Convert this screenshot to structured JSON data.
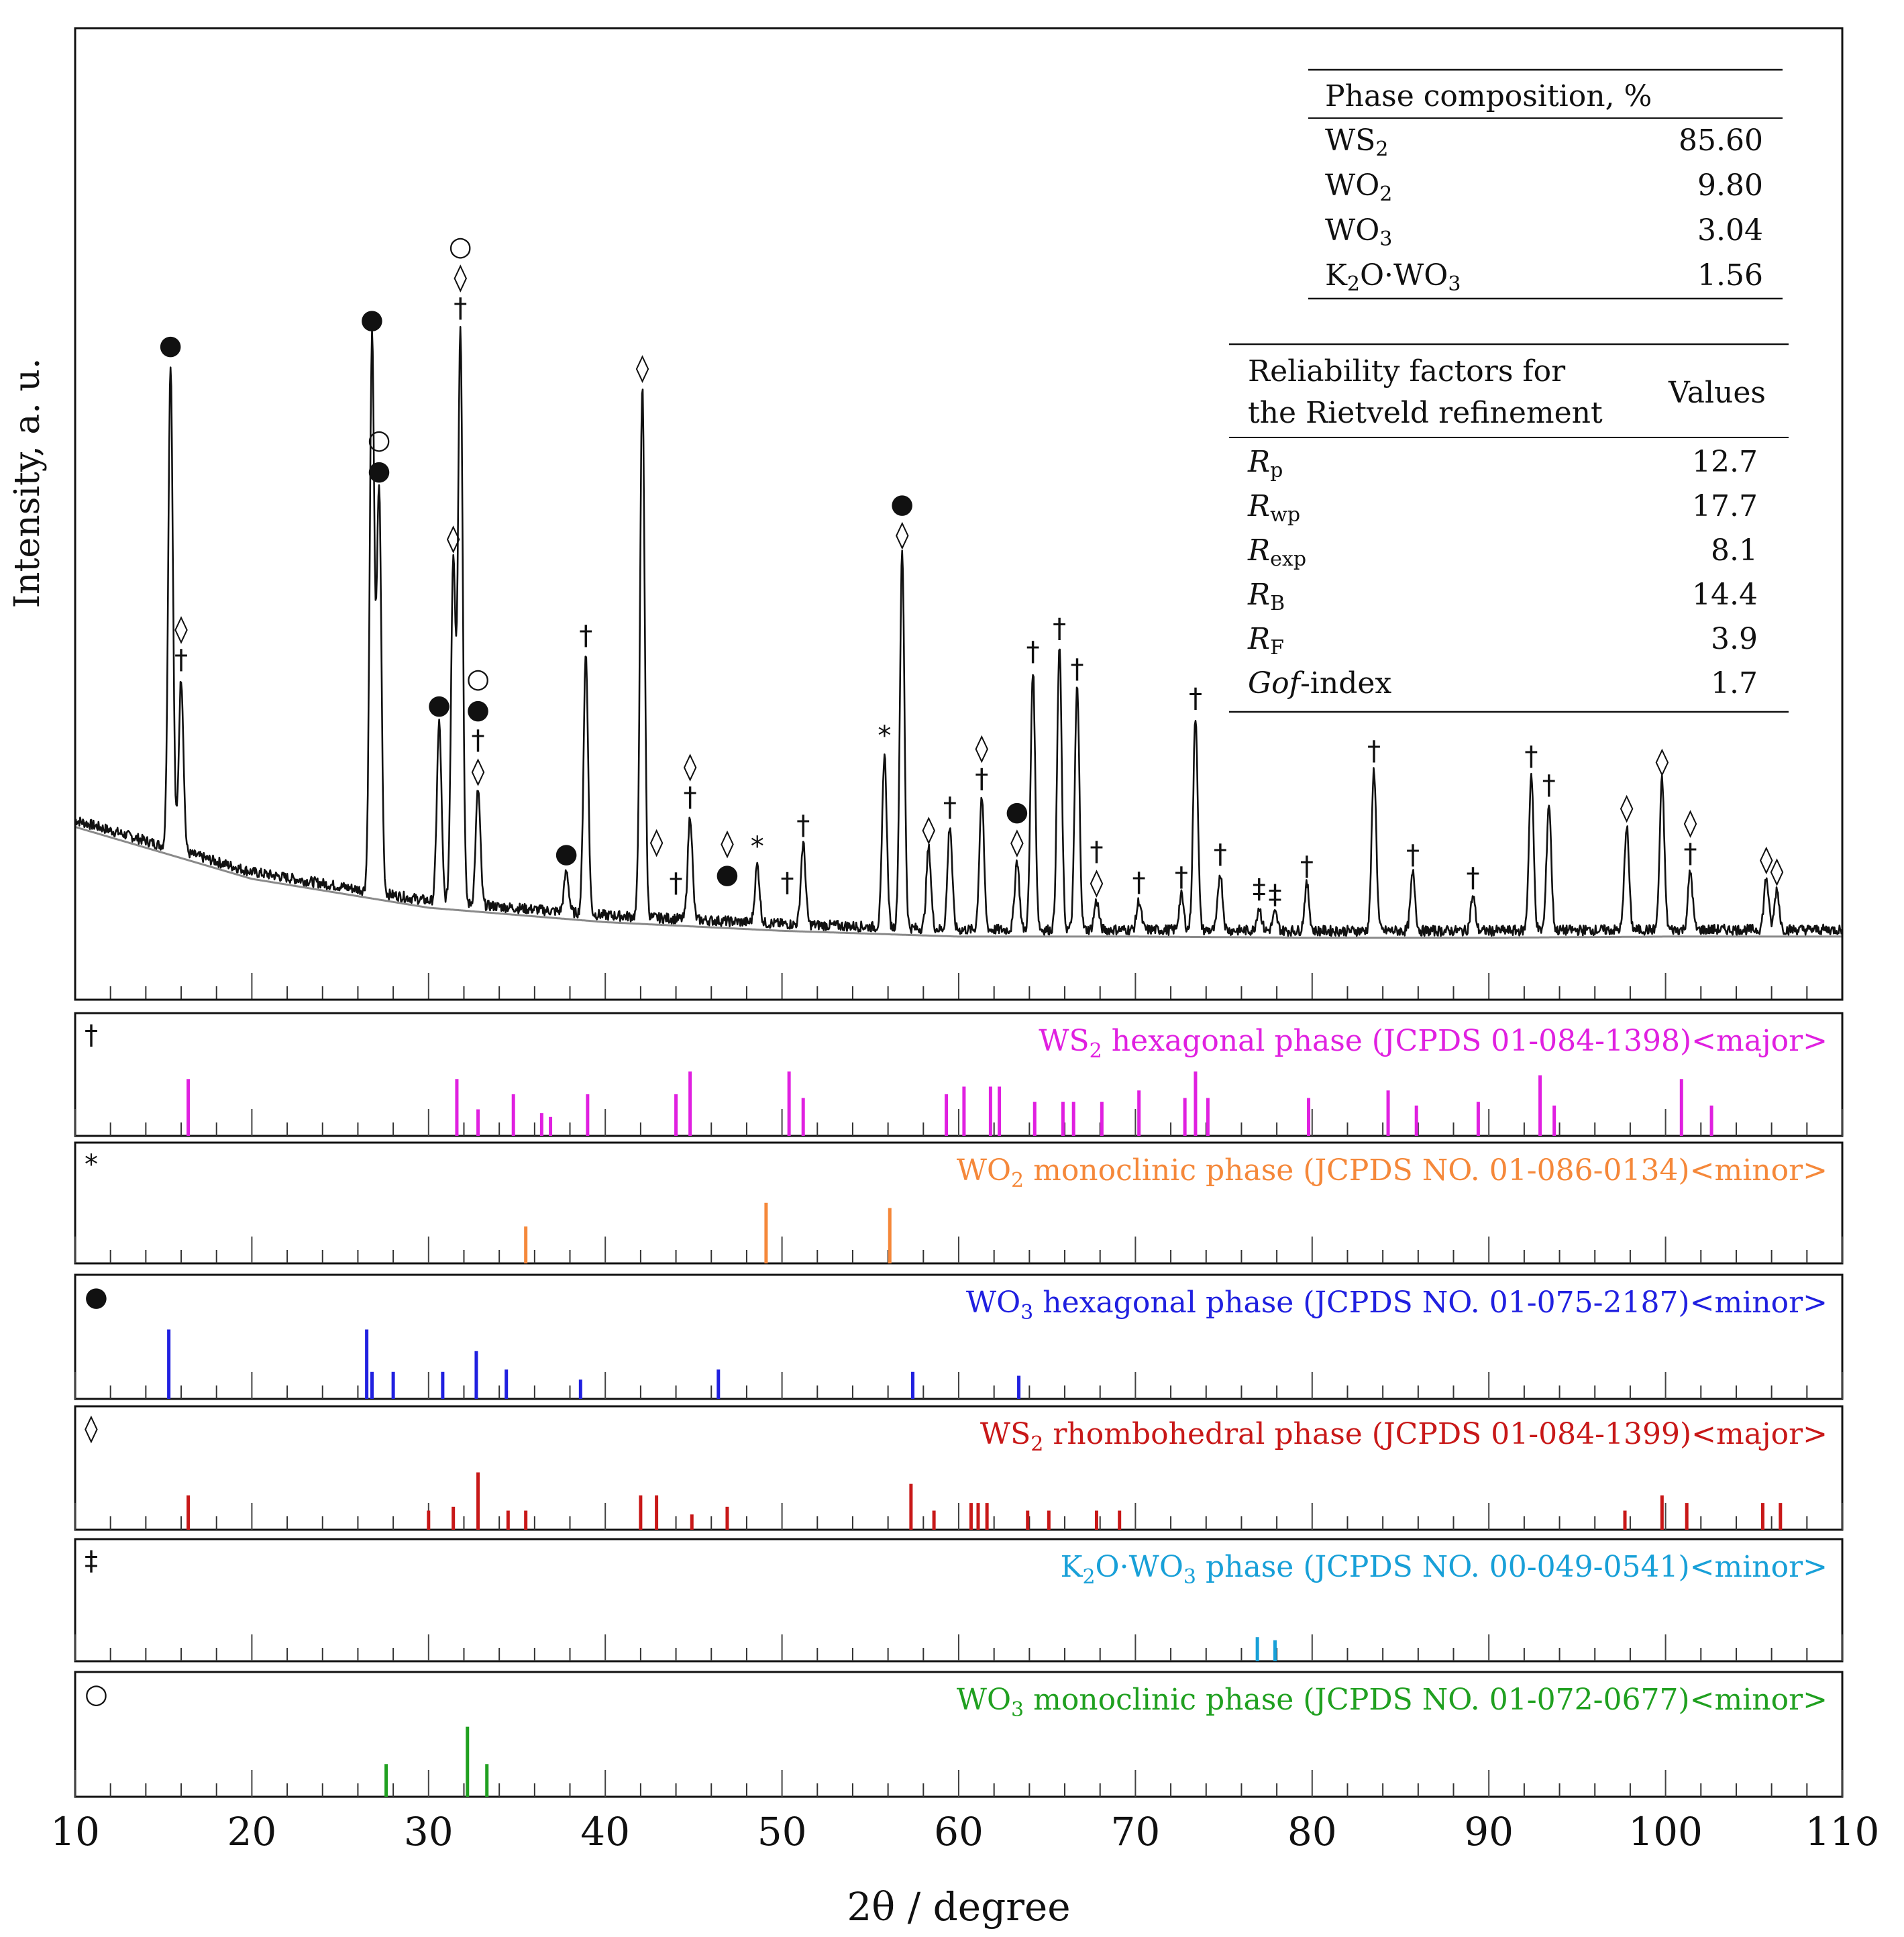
{
  "chart_data": {
    "type": "line",
    "xlabel": "2θ / degree",
    "ylabel": "Intensity, a. u.",
    "xlim": [
      10,
      110
    ],
    "x_ticks": [
      "10",
      "20",
      "30",
      "40",
      "50",
      "60",
      "70",
      "80",
      "90",
      "100",
      "110"
    ],
    "pattern": {
      "background": [
        [
          10,
          0.23
        ],
        [
          20,
          0.14
        ],
        [
          30,
          0.09
        ],
        [
          40,
          0.065
        ],
        [
          50,
          0.05
        ],
        [
          60,
          0.04
        ],
        [
          70,
          0.04
        ],
        [
          80,
          0.038
        ],
        [
          90,
          0.038
        ],
        [
          100,
          0.04
        ],
        [
          110,
          0.04
        ]
      ],
      "peaks": [
        [
          15.4,
          0.84
        ],
        [
          16.0,
          0.3
        ],
        [
          26.8,
          0.96
        ],
        [
          27.2,
          0.7
        ],
        [
          30.6,
          0.31
        ],
        [
          31.4,
          0.6
        ],
        [
          31.8,
          1.0
        ],
        [
          32.8,
          0.2
        ],
        [
          37.8,
          0.07
        ],
        [
          38.9,
          0.45
        ],
        [
          42.1,
          0.92
        ],
        [
          44.8,
          0.18
        ],
        [
          48.6,
          0.1
        ],
        [
          51.2,
          0.14
        ],
        [
          55.8,
          0.3
        ],
        [
          56.8,
          0.65
        ],
        [
          58.3,
          0.14
        ],
        [
          59.5,
          0.18
        ],
        [
          61.3,
          0.23
        ],
        [
          63.3,
          0.12
        ],
        [
          64.2,
          0.45
        ],
        [
          65.7,
          0.49
        ],
        [
          66.7,
          0.42
        ],
        [
          67.8,
          0.05
        ],
        [
          70.2,
          0.05
        ],
        [
          72.6,
          0.06
        ],
        [
          73.4,
          0.37
        ],
        [
          74.8,
          0.1
        ],
        [
          77.0,
          0.04
        ],
        [
          77.9,
          0.03
        ],
        [
          79.7,
          0.08
        ],
        [
          83.5,
          0.28
        ],
        [
          85.7,
          0.1
        ],
        [
          89.1,
          0.06
        ],
        [
          92.4,
          0.27
        ],
        [
          93.4,
          0.22
        ],
        [
          97.8,
          0.18
        ],
        [
          99.8,
          0.26
        ],
        [
          101.4,
          0.1
        ],
        [
          105.7,
          0.09
        ],
        [
          106.3,
          0.07
        ]
      ]
    },
    "peak_markers": [
      {
        "x": 15.4,
        "y": 0.84,
        "symbols": [
          "●"
        ]
      },
      {
        "x": 16.0,
        "y": 0.3,
        "symbols": [
          "◊",
          "†"
        ]
      },
      {
        "x": 26.8,
        "y": 0.96,
        "symbols": [
          "●"
        ]
      },
      {
        "x": 27.2,
        "y": 0.7,
        "symbols": [
          "○",
          "●"
        ]
      },
      {
        "x": 30.6,
        "y": 0.31,
        "symbols": [
          "●"
        ]
      },
      {
        "x": 31.4,
        "y": 0.6,
        "symbols": [
          "◊"
        ]
      },
      {
        "x": 31.8,
        "y": 1.0,
        "symbols": [
          "○",
          "◊",
          "†"
        ]
      },
      {
        "x": 32.8,
        "y": 0.2,
        "symbols": [
          "○",
          "●",
          "†",
          "◊"
        ]
      },
      {
        "x": 37.8,
        "y": 0.07,
        "symbols": [
          "●"
        ]
      },
      {
        "x": 38.9,
        "y": 0.45,
        "symbols": [
          "†"
        ]
      },
      {
        "x": 42.1,
        "y": 0.92,
        "symbols": [
          "◊"
        ]
      },
      {
        "x": 42.9,
        "y": 0.1,
        "symbols": [
          "◊"
        ]
      },
      {
        "x": 44.0,
        "y": 0.03,
        "symbols": [
          "†"
        ]
      },
      {
        "x": 44.8,
        "y": 0.18,
        "symbols": [
          "◊",
          "†"
        ]
      },
      {
        "x": 46.9,
        "y": 0.05,
        "symbols": [
          "◊",
          "●"
        ]
      },
      {
        "x": 48.6,
        "y": 0.1,
        "symbols": [
          "*"
        ]
      },
      {
        "x": 50.3,
        "y": 0.04,
        "symbols": [
          "†"
        ]
      },
      {
        "x": 51.2,
        "y": 0.14,
        "symbols": [
          "†"
        ]
      },
      {
        "x": 55.8,
        "y": 0.3,
        "symbols": [
          "*"
        ]
      },
      {
        "x": 56.8,
        "y": 0.65,
        "symbols": [
          "●",
          "◊"
        ]
      },
      {
        "x": 58.3,
        "y": 0.14,
        "symbols": [
          "◊"
        ]
      },
      {
        "x": 59.5,
        "y": 0.18,
        "symbols": [
          "†"
        ]
      },
      {
        "x": 61.3,
        "y": 0.23,
        "symbols": [
          "◊",
          "†"
        ]
      },
      {
        "x": 63.3,
        "y": 0.12,
        "symbols": [
          "●",
          "◊"
        ]
      },
      {
        "x": 64.2,
        "y": 0.45,
        "symbols": [
          "†"
        ]
      },
      {
        "x": 65.7,
        "y": 0.49,
        "symbols": [
          "†"
        ]
      },
      {
        "x": 66.7,
        "y": 0.42,
        "symbols": [
          "†"
        ]
      },
      {
        "x": 67.8,
        "y": 0.05,
        "symbols": [
          "†",
          "◊"
        ]
      },
      {
        "x": 70.2,
        "y": 0.05,
        "symbols": [
          "†"
        ]
      },
      {
        "x": 72.6,
        "y": 0.06,
        "symbols": [
          "†"
        ]
      },
      {
        "x": 73.4,
        "y": 0.37,
        "symbols": [
          "†"
        ]
      },
      {
        "x": 74.8,
        "y": 0.1,
        "symbols": [
          "†"
        ]
      },
      {
        "x": 77.0,
        "y": 0.04,
        "symbols": [
          "‡"
        ]
      },
      {
        "x": 77.9,
        "y": 0.03,
        "symbols": [
          "‡"
        ]
      },
      {
        "x": 79.7,
        "y": 0.08,
        "symbols": [
          "†"
        ]
      },
      {
        "x": 83.5,
        "y": 0.28,
        "symbols": [
          "†"
        ]
      },
      {
        "x": 85.7,
        "y": 0.1,
        "symbols": [
          "†"
        ]
      },
      {
        "x": 89.1,
        "y": 0.06,
        "symbols": [
          "†"
        ]
      },
      {
        "x": 92.4,
        "y": 0.27,
        "symbols": [
          "†"
        ]
      },
      {
        "x": 93.4,
        "y": 0.22,
        "symbols": [
          "†"
        ]
      },
      {
        "x": 97.8,
        "y": 0.18,
        "symbols": [
          "◊"
        ]
      },
      {
        "x": 99.8,
        "y": 0.26,
        "symbols": [
          "◊"
        ]
      },
      {
        "x": 101.4,
        "y": 0.1,
        "symbols": [
          "◊",
          "†"
        ]
      },
      {
        "x": 105.7,
        "y": 0.09,
        "symbols": [
          "◊"
        ]
      },
      {
        "x": 106.3,
        "y": 0.07,
        "symbols": [
          "◊"
        ]
      }
    ],
    "reference_phases": [
      {
        "symbol": "†",
        "color": "#e020e0",
        "label_parts": [
          [
            "WS",
            ""
          ],
          [
            "2",
            "sub"
          ],
          [
            " hexagonal phase  (JCPDS 01-084-1398)<major>",
            ""
          ]
        ],
        "lines": [
          [
            16.4,
            0.75
          ],
          [
            31.6,
            0.75
          ],
          [
            32.8,
            0.35
          ],
          [
            34.8,
            0.55
          ],
          [
            36.4,
            0.3
          ],
          [
            36.9,
            0.25
          ],
          [
            39.0,
            0.55
          ],
          [
            44.0,
            0.55
          ],
          [
            44.8,
            0.85
          ],
          [
            50.4,
            0.85
          ],
          [
            51.2,
            0.5
          ],
          [
            59.3,
            0.55
          ],
          [
            60.3,
            0.65
          ],
          [
            61.8,
            0.65
          ],
          [
            62.3,
            0.65
          ],
          [
            64.3,
            0.45
          ],
          [
            65.9,
            0.45
          ],
          [
            66.5,
            0.45
          ],
          [
            68.1,
            0.45
          ],
          [
            70.2,
            0.6
          ],
          [
            72.8,
            0.5
          ],
          [
            73.4,
            0.85
          ],
          [
            74.1,
            0.5
          ],
          [
            79.8,
            0.5
          ],
          [
            84.3,
            0.6
          ],
          [
            85.9,
            0.4
          ],
          [
            89.4,
            0.45
          ],
          [
            92.9,
            0.8
          ],
          [
            93.7,
            0.4
          ],
          [
            100.9,
            0.75
          ],
          [
            102.6,
            0.4
          ]
        ]
      },
      {
        "symbol": "*",
        "color": "#f5883a",
        "label_parts": [
          [
            "WO",
            ""
          ],
          [
            "2",
            "sub"
          ],
          [
            " monoclinic phase (JCPDS NO. 01-086-0134)<minor>",
            ""
          ]
        ],
        "lines": [
          [
            35.5,
            0.5
          ],
          [
            49.1,
            0.82
          ],
          [
            56.1,
            0.75
          ]
        ]
      },
      {
        "symbol": "●",
        "color": "#2020e0",
        "label_parts": [
          [
            "WO",
            ""
          ],
          [
            "3",
            "sub"
          ],
          [
            " hexagonal phase (JCPDS NO. 01-075-2187)<minor>",
            ""
          ]
        ],
        "lines": [
          [
            15.3,
            0.9
          ],
          [
            26.5,
            0.9
          ],
          [
            26.8,
            0.35
          ],
          [
            28.0,
            0.35
          ],
          [
            30.8,
            0.35
          ],
          [
            32.7,
            0.62
          ],
          [
            34.4,
            0.38
          ],
          [
            38.6,
            0.25
          ],
          [
            46.4,
            0.38
          ],
          [
            57.4,
            0.35
          ],
          [
            63.4,
            0.3
          ]
        ]
      },
      {
        "symbol": "◊",
        "color": "#c81818",
        "label_parts": [
          [
            "WS",
            ""
          ],
          [
            "2",
            "sub"
          ],
          [
            " rhombohedral phase (JCPDS 01-084-1399)<major>",
            ""
          ]
        ],
        "lines": [
          [
            16.4,
            0.45
          ],
          [
            30.0,
            0.25
          ],
          [
            31.4,
            0.3
          ],
          [
            32.8,
            0.75
          ],
          [
            34.5,
            0.25
          ],
          [
            35.5,
            0.25
          ],
          [
            42.0,
            0.45
          ],
          [
            42.9,
            0.45
          ],
          [
            44.9,
            0.2
          ],
          [
            46.9,
            0.3
          ],
          [
            57.3,
            0.6
          ],
          [
            58.6,
            0.25
          ],
          [
            60.7,
            0.35
          ],
          [
            61.1,
            0.35
          ],
          [
            61.6,
            0.35
          ],
          [
            63.9,
            0.25
          ],
          [
            65.1,
            0.25
          ],
          [
            67.8,
            0.25
          ],
          [
            69.1,
            0.25
          ],
          [
            97.7,
            0.25
          ],
          [
            99.8,
            0.45
          ],
          [
            101.2,
            0.35
          ],
          [
            105.5,
            0.35
          ],
          [
            106.5,
            0.35
          ]
        ]
      },
      {
        "symbol": "‡",
        "color": "#18a0d8",
        "label_parts": [
          [
            "K",
            ""
          ],
          [
            "2",
            "sub"
          ],
          [
            "O·WO",
            ""
          ],
          [
            "3",
            "sub"
          ],
          [
            " phase (JCPDS NO. 00-049-0541)<minor>",
            ""
          ]
        ],
        "lines": [
          [
            76.9,
            0.32
          ],
          [
            77.9,
            0.28
          ]
        ]
      },
      {
        "symbol": "○",
        "color": "#20a020",
        "label_parts": [
          [
            "WO",
            ""
          ],
          [
            "3",
            "sub"
          ],
          [
            " monoclinic phase (JCPDS NO. 01-072-0677)<minor>",
            ""
          ]
        ],
        "lines": [
          [
            27.6,
            0.42
          ],
          [
            32.2,
            0.9
          ],
          [
            33.3,
            0.42
          ]
        ]
      }
    ]
  },
  "phase_table": {
    "header": "Phase composition, %",
    "rows": [
      {
        "name": "WS",
        "sub": "2",
        "suffix": "",
        "sub2": "",
        "value": "85.60"
      },
      {
        "name": "WO",
        "sub": "2",
        "suffix": "",
        "sub2": "",
        "value": "9.80"
      },
      {
        "name": "WO",
        "sub": "3",
        "suffix": "",
        "sub2": "",
        "value": "3.04"
      },
      {
        "name": "K",
        "sub": "2",
        "suffix": "O·WO",
        "sub2": "3",
        "value": "1.56"
      }
    ]
  },
  "reliability_table": {
    "header_line1": "Reliability factors for",
    "header_line2": "the Rietveld refinement",
    "header_values": "Values",
    "rows": [
      {
        "italic": "R",
        "sub": "p",
        "normal": "",
        "value": "12.7"
      },
      {
        "italic": "R",
        "sub": "wp",
        "normal": "",
        "value": "17.7"
      },
      {
        "italic": "R",
        "sub": "exp",
        "normal": "",
        "value": "8.1"
      },
      {
        "italic": "R",
        "sub": "B",
        "normal": "",
        "value": "14.4"
      },
      {
        "italic": "R",
        "sub": "F",
        "normal": "",
        "value": "3.9"
      },
      {
        "italic": "Gof",
        "sub": "",
        "normal": "-index",
        "value": "1.7"
      }
    ]
  }
}
